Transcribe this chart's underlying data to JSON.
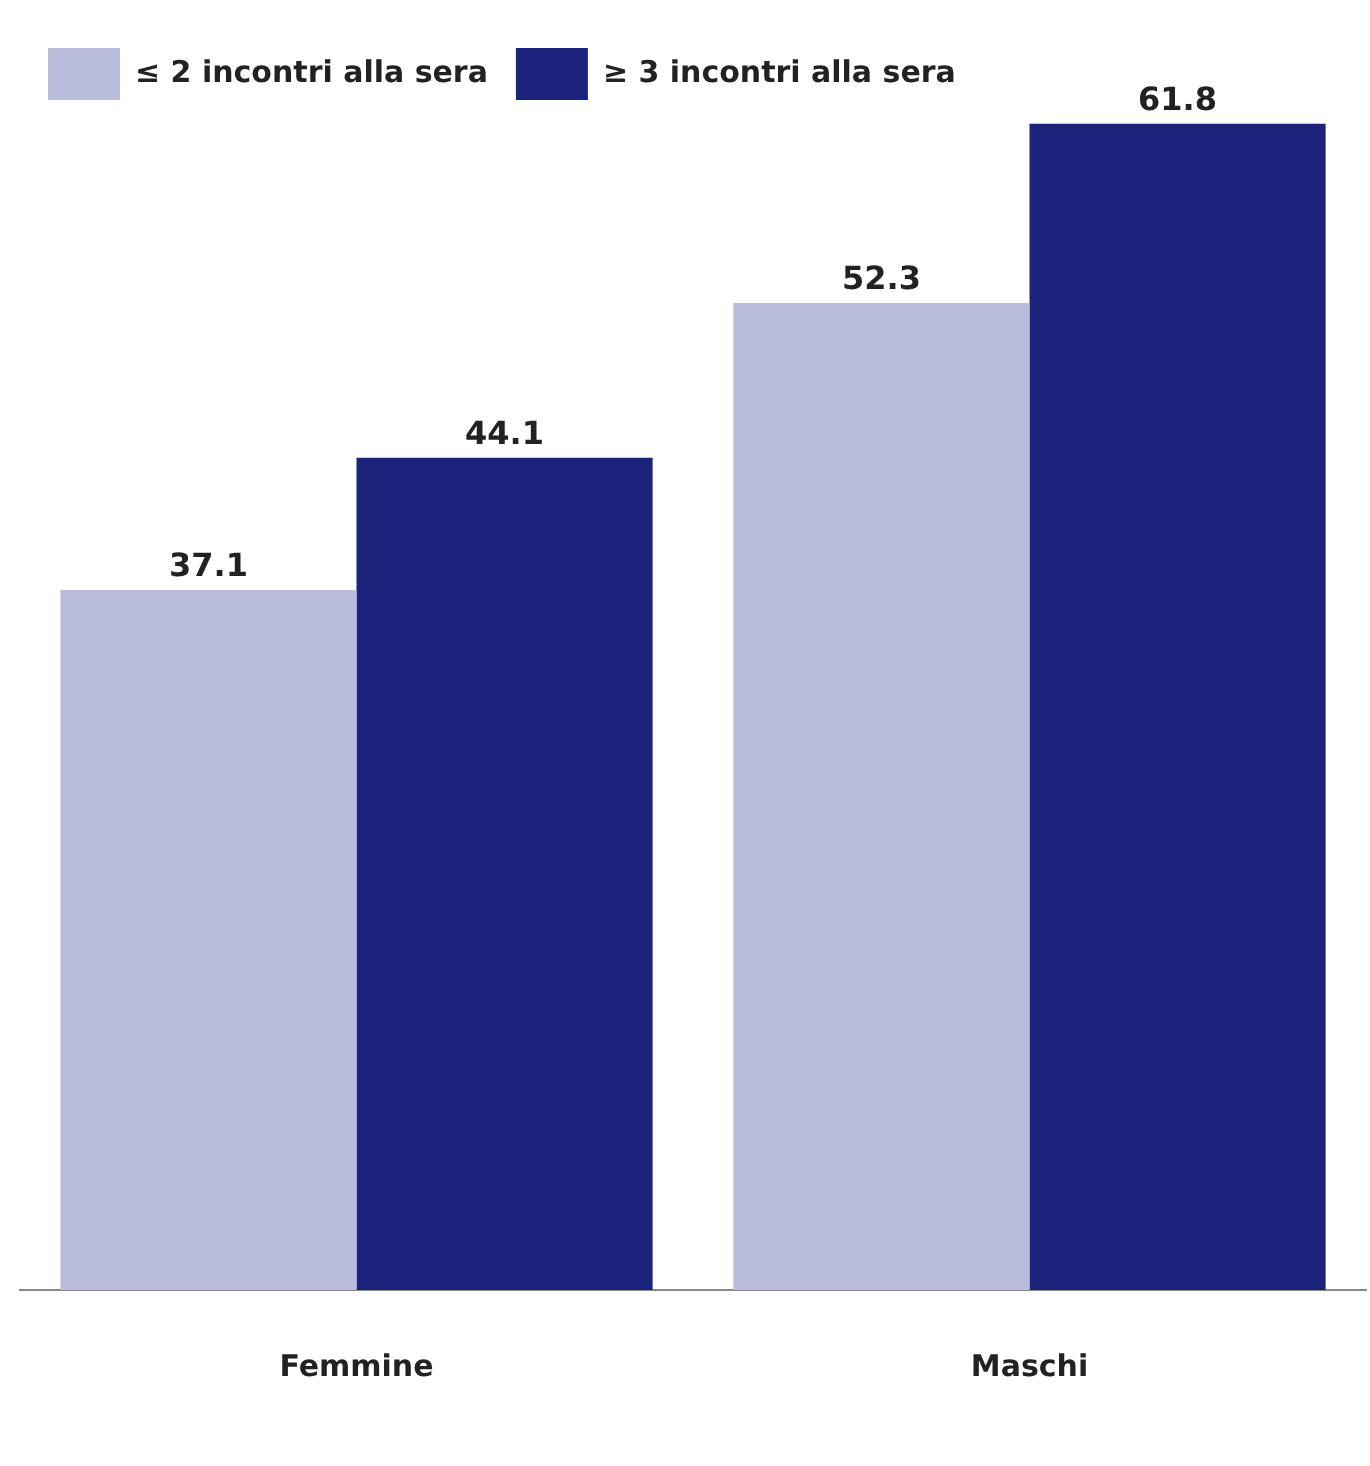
{
  "chart_data": {
    "type": "bar",
    "categories": [
      "Femmine",
      "Maschi"
    ],
    "series": [
      {
        "name": "≤ 2 incontri alla sera",
        "color": "#b9bcda",
        "values": [
          37.1,
          52.3
        ]
      },
      {
        "name": "≥ 3 incontri alla sera",
        "color": "#1b237c",
        "values": [
          44.1,
          61.8
        ]
      }
    ],
    "ylim": [
      0,
      62
    ],
    "data_labels": true,
    "grid": false,
    "legend": "top left",
    "tick_labels": "x"
  }
}
